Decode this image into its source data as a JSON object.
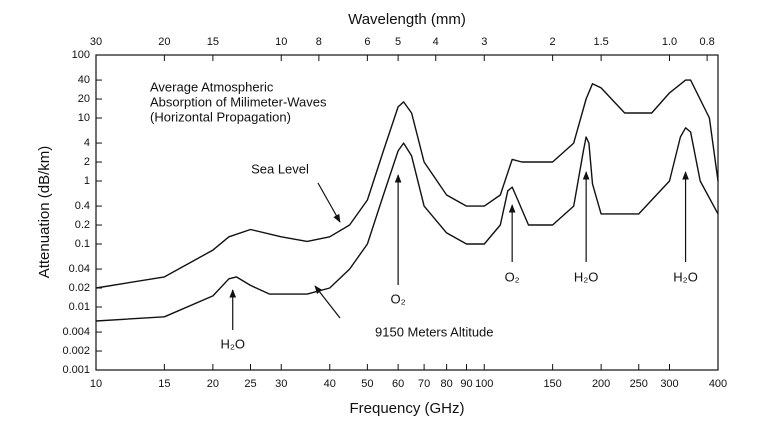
{
  "chart_data": {
    "type": "line",
    "title": [
      "Average Atmospheric",
      "Absorption of Milimeter-Waves",
      "(Horizontal Propagation)"
    ],
    "x_label": "Frequency (GHz)",
    "x2_label": "Wavelength (mm)",
    "y_label": "Attenuation (dB/km)",
    "log_x": true,
    "log_y": true,
    "grid": false,
    "xlim": [
      10,
      400
    ],
    "xticks": [
      10,
      15,
      20,
      25,
      30,
      40,
      50,
      60,
      70,
      80,
      90,
      100,
      150,
      200,
      250,
      300,
      400
    ],
    "x2lim": [
      30,
      0.75
    ],
    "x2ticks": [
      30,
      20,
      15,
      10,
      8,
      6,
      5,
      4,
      3,
      2,
      1.5,
      {
        "value": 1,
        "label": "1.0"
      },
      0.8
    ],
    "ylim": [
      0.001,
      100
    ],
    "yticks": [
      0.001,
      0.002,
      0.004,
      0.01,
      0.02,
      0.04,
      0.1,
      0.2,
      0.4,
      1,
      2,
      4,
      10,
      20,
      40,
      100
    ],
    "series": [
      {
        "name": "Sea Level",
        "color": "#111111",
        "x": [
          10,
          15,
          20,
          22,
          25,
          30,
          35,
          40,
          45,
          50,
          55,
          60,
          62,
          65,
          70,
          80,
          90,
          100,
          110,
          118,
          125,
          150,
          170,
          183,
          190,
          200,
          230,
          270,
          300,
          330,
          340,
          380,
          400
        ],
        "values": [
          0.02,
          0.03,
          0.08,
          0.13,
          0.17,
          0.13,
          0.11,
          0.13,
          0.2,
          0.5,
          3,
          15,
          18,
          12,
          2,
          0.6,
          0.4,
          0.4,
          0.6,
          2.2,
          2,
          2,
          4,
          20,
          35,
          30,
          12,
          12,
          25,
          40,
          40,
          10,
          1
        ]
      },
      {
        "name": "9150 Meters Altitude",
        "color": "#111111",
        "x": [
          10,
          15,
          20,
          22,
          23,
          25,
          28,
          35,
          40,
          45,
          50,
          55,
          60,
          62,
          65,
          70,
          80,
          90,
          100,
          110,
          115,
          118,
          122,
          130,
          150,
          170,
          180,
          183,
          186,
          190,
          200,
          250,
          300,
          320,
          330,
          340,
          360,
          400
        ],
        "values": [
          0.006,
          0.007,
          0.015,
          0.028,
          0.03,
          0.022,
          0.016,
          0.016,
          0.02,
          0.04,
          0.1,
          0.6,
          3,
          4,
          2.5,
          0.4,
          0.15,
          0.1,
          0.1,
          0.2,
          0.7,
          0.8,
          0.5,
          0.2,
          0.2,
          0.4,
          3,
          5,
          4,
          0.9,
          0.3,
          0.3,
          1,
          5,
          7,
          6,
          1,
          0.3
        ]
      }
    ],
    "annotations": [
      {
        "text": "H₂O",
        "x": 22.5
      },
      {
        "text": "O₂",
        "x": 60
      },
      {
        "text": "O₂",
        "x": 118
      },
      {
        "text": "H₂O",
        "x": 183
      },
      {
        "text": "H₂O",
        "x": 330
      }
    ]
  }
}
